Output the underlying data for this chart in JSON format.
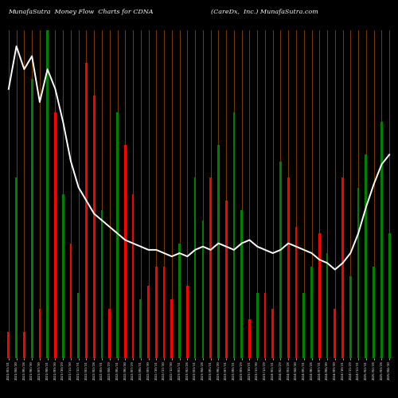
{
  "title_left": "MunafaSutra  Money Flow  Charts for CDNA",
  "title_right": "(CareDx,  Inc.) MunafaSutra.com",
  "background_color": "#000000",
  "grid_color": "#8B4500",
  "line_color": "#ffffff",
  "bar_colors": [
    "red",
    "green",
    "red",
    "green",
    "red",
    "green",
    "red",
    "green",
    "red",
    "green",
    "red",
    "red",
    "green",
    "red",
    "green",
    "red",
    "red",
    "green",
    "red",
    "red",
    "red",
    "red",
    "green",
    "red",
    "green",
    "green",
    "red",
    "green",
    "red",
    "green",
    "green",
    "red",
    "green",
    "red",
    "red",
    "green",
    "red",
    "red",
    "green",
    "green",
    "red",
    "green",
    "red",
    "red",
    "green",
    "green",
    "green",
    "green",
    "green",
    "green"
  ],
  "bar_values": [
    8,
    55,
    8,
    85,
    15,
    100,
    75,
    50,
    35,
    20,
    90,
    80,
    45,
    15,
    75,
    65,
    50,
    18,
    22,
    28,
    28,
    18,
    35,
    22,
    55,
    42,
    55,
    65,
    48,
    75,
    45,
    12,
    20,
    20,
    15,
    60,
    55,
    40,
    20,
    28,
    38,
    32,
    15,
    55,
    25,
    52,
    62,
    28,
    72,
    38
  ],
  "line_values": [
    82,
    95,
    88,
    92,
    78,
    88,
    82,
    72,
    60,
    52,
    48,
    44,
    42,
    40,
    38,
    36,
    35,
    34,
    33,
    33,
    32,
    31,
    32,
    31,
    33,
    34,
    33,
    35,
    34,
    33,
    35,
    36,
    34,
    33,
    32,
    33,
    35,
    34,
    33,
    32,
    30,
    29,
    27,
    29,
    32,
    38,
    46,
    53,
    59,
    62
  ],
  "n_bars": 50,
  "dates": [
    "2021/03/31",
    "2021/04/30",
    "2021/05/28",
    "2021/06/30",
    "2021/07/30",
    "2021/08/31",
    "2021/09/30",
    "2021/10/29",
    "2021/11/30",
    "2021/12/31",
    "2022/01/31",
    "2022/02/28",
    "2022/03/31",
    "2022/04/29",
    "2022/05/31",
    "2022/06/30",
    "2022/07/29",
    "2022/08/31",
    "2022/09/30",
    "2022/10/31",
    "2022/11/30",
    "2022/12/30",
    "2023/01/31",
    "2023/02/28",
    "2023/03/31",
    "2023/04/28",
    "2023/05/31",
    "2023/06/30",
    "2023/07/31",
    "2023/08/31",
    "2023/09/29",
    "2023/10/31",
    "2023/11/30",
    "2023/12/29",
    "2024/01/31",
    "2024/02/29",
    "2024/03/28",
    "2024/04/30",
    "2024/05/31",
    "2024/06/28",
    "2024/07/31",
    "2024/08/30",
    "2024/09/30",
    "2024/10/31",
    "2024/11/29",
    "2024/12/31",
    "2025/01/31",
    "2025/02/28",
    "2025/03/28",
    "2025/04/30"
  ],
  "figsize": [
    5.0,
    5.0
  ],
  "dpi": 100
}
